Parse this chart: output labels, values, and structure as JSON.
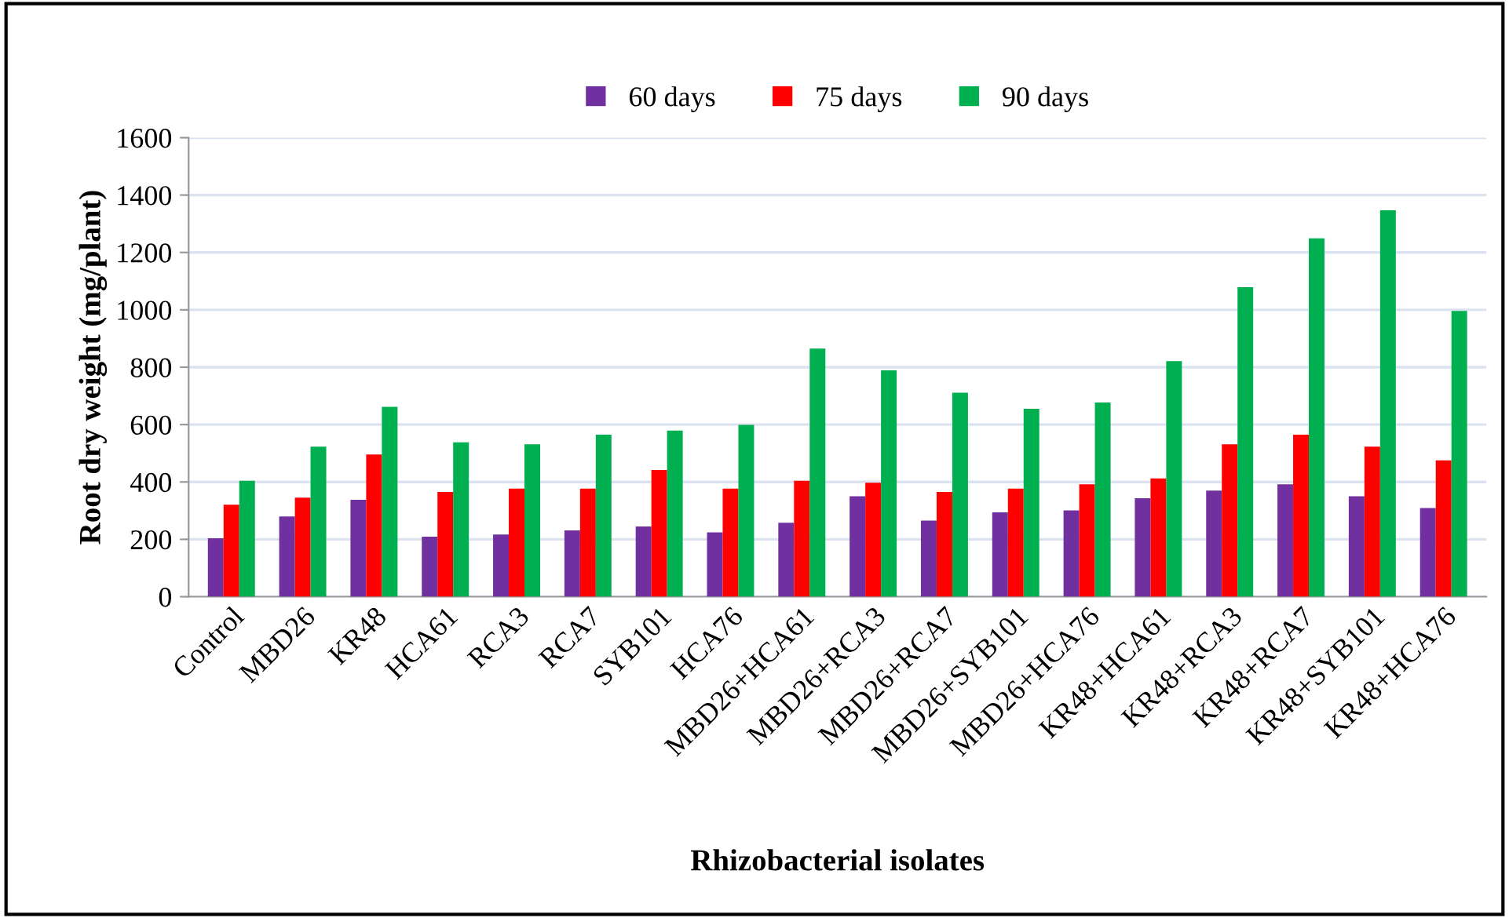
{
  "chart_data": {
    "type": "bar",
    "xlabel": "Rhizobacterial isolates",
    "ylabel": "Root dry weight (mg/plant)",
    "categories": [
      "Control",
      "MBD26",
      "KR48",
      "HCA61",
      "RCA3",
      "RCA7",
      "SYB101",
      "HCA76",
      "MBD26+HCA61",
      "MBD26+RCA3",
      "MBD26+RCA7",
      "MBD26+SYB101",
      "MBD26+HCA76",
      "KR48+HCA61",
      "KR48+RCA3",
      "KR48+RCA7",
      "KR48+SYB101",
      "KR48+HCA76"
    ],
    "series": [
      {
        "name": "60 days",
        "color": "#7030a0",
        "values": [
          204,
          280,
          338,
          209,
          217,
          231,
          245,
          224,
          258,
          350,
          265,
          294,
          301,
          343,
          370,
          392,
          350,
          309
        ]
      },
      {
        "name": "75 days",
        "color": "#ff0000",
        "values": [
          321,
          345,
          496,
          365,
          377,
          377,
          442,
          377,
          404,
          397,
          365,
          377,
          392,
          412,
          531,
          565,
          523,
          475
        ]
      },
      {
        "name": "90 days",
        "color": "#00b050",
        "values": [
          404,
          523,
          662,
          538,
          531,
          565,
          579,
          599,
          865,
          789,
          711,
          655,
          677,
          821,
          1079,
          1249,
          1347,
          996
        ]
      }
    ],
    "ylim": [
      0,
      1600
    ],
    "yticks": [
      0,
      200,
      400,
      600,
      800,
      1000,
      1200,
      1400,
      1600
    ],
    "grid": "y",
    "legend": "top"
  }
}
